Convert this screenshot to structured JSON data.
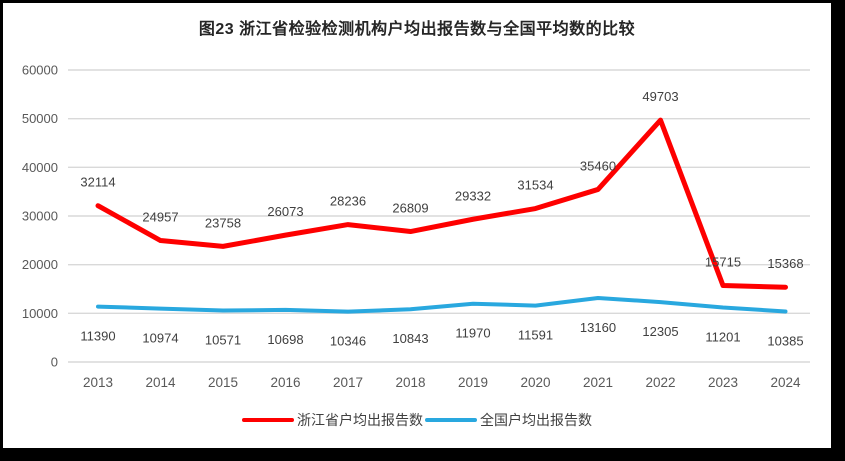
{
  "title": "图23  浙江省检验检测机构户均出报告数与全国平均数的比较",
  "colors": {
    "zhejiang_line": "#fe0000",
    "national_line": "#29a8df",
    "gridline": "#d9d9d9",
    "tick_text": "#595959",
    "data_label_text": "#404040",
    "title_text": "#262626",
    "frame": "#000000",
    "chart_background": "#ffffff"
  },
  "chart_data": {
    "type": "line",
    "title": "图23  浙江省检验检测机构户均出报告数与全国平均数的比较",
    "categories": [
      "2013",
      "2014",
      "2015",
      "2016",
      "2017",
      "2018",
      "2019",
      "2020",
      "2021",
      "2022",
      "2023",
      "2024"
    ],
    "series": [
      {
        "name": "浙江省户均出报告数",
        "color": "#fe0000",
        "label_position": "above",
        "values": [
          32114,
          24957,
          23758,
          26073,
          28236,
          26809,
          29332,
          31534,
          35460,
          49703,
          15715,
          15368
        ]
      },
      {
        "name": "全国户均出报告数",
        "color": "#29a8df",
        "label_position": "below",
        "values": [
          11390,
          10974,
          10571,
          10698,
          10346,
          10843,
          11970,
          11591,
          13160,
          12305,
          11201,
          10385
        ]
      }
    ],
    "xlabel": "",
    "ylabel": "",
    "ylim": [
      0,
      60000
    ],
    "yticks": [
      0,
      10000,
      20000,
      30000,
      40000,
      50000,
      60000
    ],
    "grid": true,
    "data_labels": true,
    "legend_position": "bottom"
  }
}
